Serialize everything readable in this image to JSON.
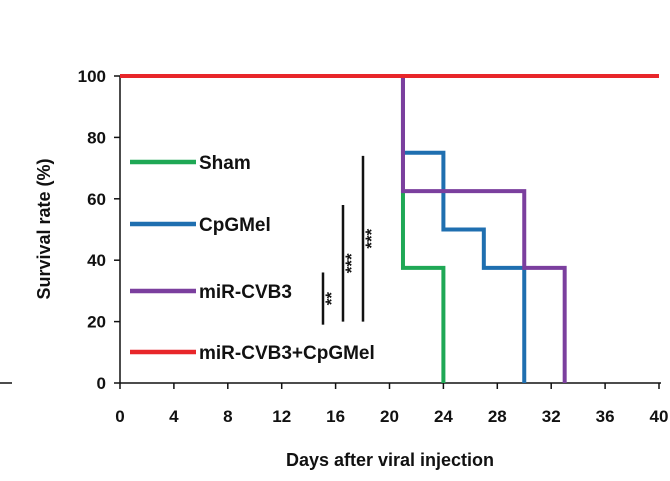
{
  "chart_data": {
    "type": "line",
    "step": true,
    "title": "",
    "xlabel": "Days after viral injection",
    "ylabel": "Survival rate (%)",
    "xlim": [
      0,
      40
    ],
    "ylim": [
      0,
      100
    ],
    "xticks": [
      0,
      4,
      8,
      12,
      16,
      20,
      24,
      28,
      32,
      36,
      40
    ],
    "yticks": [
      0,
      20,
      40,
      60,
      80,
      100
    ],
    "grid": false,
    "legend_position": "left",
    "series": [
      {
        "name": "Sham",
        "color": "#1fa855",
        "x": [
          0,
          21,
          21,
          24,
          24
        ],
        "y": [
          100,
          100,
          37.5,
          37.5,
          0
        ]
      },
      {
        "name": "CpGMel",
        "color": "#1f6fb0",
        "x": [
          0,
          21,
          21,
          24,
          24,
          27,
          27,
          30,
          30
        ],
        "y": [
          100,
          100,
          75,
          75,
          50,
          50,
          37.5,
          37.5,
          0
        ]
      },
      {
        "name": "miR-CVB3",
        "color": "#7b3f9e",
        "x": [
          0,
          21,
          21,
          30,
          30,
          33,
          33
        ],
        "y": [
          100,
          100,
          62.5,
          62.5,
          37.5,
          37.5,
          0
        ]
      },
      {
        "name": "miR-CVB3+CpGMel",
        "color": "#e8262a",
        "x": [
          0,
          40
        ],
        "y": [
          100,
          100
        ]
      }
    ],
    "significance": [
      {
        "label": "**",
        "y_range": [
          19,
          36
        ]
      },
      {
        "label": "***",
        "y_range": [
          20,
          58
        ]
      },
      {
        "label": "***",
        "y_range": [
          20,
          74
        ]
      }
    ]
  }
}
